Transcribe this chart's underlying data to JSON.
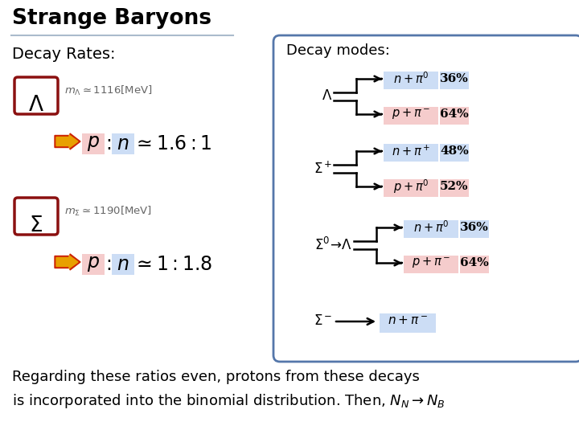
{
  "title": "Strange Baryons",
  "bg_color": "#ffffff",
  "title_underline_color": "#aabbcc",
  "decay_rates_label": "Decay Rates:",
  "decay_modes_label": "Decay modes:",
  "lambda_box_color": "#8b1010",
  "sigma_box_color": "#8b1010",
  "lambda_mass": "$m_{\\Lambda} \\simeq 1116[\\mathrm{MeV}]$",
  "sigma_mass": "$m_{\\Sigma} \\simeq 1190[\\mathrm{MeV}]$",
  "arrow_color_outer": "#cc2200",
  "arrow_color_inner": "#e8a000",
  "p_bg": "#f5cccc",
  "n_bg": "#ccddf5",
  "decay_box_border": "#5577aa",
  "bottom_text1": "Regarding these ratios even, protons from these decays",
  "bottom_text2": "is incorporated into the binomial distribution. Then, $N_N\\rightarrow N_B$",
  "decays": [
    {
      "label": "$\\Lambda$",
      "double_line": true,
      "single_arrow": false,
      "mode1": "$p + \\pi^-$",
      "mode2": "$n + \\pi^0$",
      "pct1": "64%",
      "pct2": "36%",
      "col1": "#f5cccc",
      "col2": "#ccddf5"
    },
    {
      "label": "$\\Sigma^+$",
      "double_line": true,
      "single_arrow": false,
      "mode1": "$p + \\pi^0$",
      "mode2": "$n + \\pi^+$",
      "pct1": "52%",
      "pct2": "48%",
      "col1": "#f5cccc",
      "col2": "#ccddf5"
    },
    {
      "label": "$\\Sigma^0\\!\\rightarrow\\!\\Lambda$",
      "double_line": true,
      "single_arrow": false,
      "mode1": "$p + \\pi^-$",
      "mode2": "$n + \\pi^0$",
      "pct1": "64%",
      "pct2": "36%",
      "col1": "#f5cccc",
      "col2": "#ccddf5"
    },
    {
      "label": "$\\Sigma^-$",
      "double_line": false,
      "single_arrow": true,
      "mode1": "$n + \\pi^-$",
      "mode2": "",
      "pct1": "",
      "pct2": "",
      "col1": "#ccddf5",
      "col2": "#ccddf5"
    }
  ]
}
